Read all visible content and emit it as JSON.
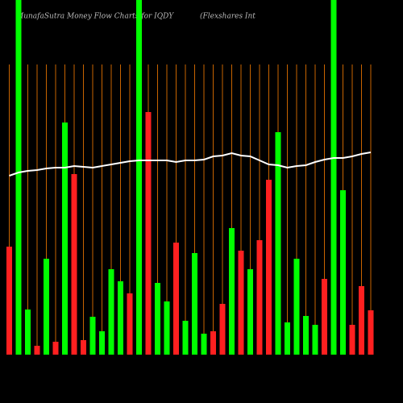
{
  "chart_data": {
    "type": "bar",
    "title": "MunafaSutra  Money Flow  Charts for IQDY",
    "subtitle": "(Flexshares Int",
    "series": [
      {
        "values": [
          134,
          440,
          56,
          11,
          119,
          16,
          288,
          224,
          18,
          47,
          29,
          106,
          91,
          76,
          440,
          301,
          89,
          66,
          139,
          42,
          126,
          26,
          29,
          63,
          157,
          129,
          106,
          142,
          217,
          276,
          40,
          119,
          48,
          37,
          94,
          440,
          204,
          37,
          85,
          55
        ],
        "colors": [
          "#ff2020",
          "#00ff00",
          "#00ff00",
          "#ff2020",
          "#00ff00",
          "#ff2020",
          "#00ff00",
          "#ff2020",
          "#ff2020",
          "#00ff00",
          "#00ff00",
          "#00ff00",
          "#00ff00",
          "#ff2020",
          "#00ff00",
          "#ff2020",
          "#00ff00",
          "#00ff00",
          "#ff2020",
          "#00ff00",
          "#00ff00",
          "#00ff00",
          "#ff2020",
          "#ff2020",
          "#00ff00",
          "#ff2020",
          "#00ff00",
          "#ff2020",
          "#ff2020",
          "#00ff00",
          "#00ff00",
          "#00ff00",
          "#00ff00",
          "#00ff00",
          "#ff2020",
          "#00ff00",
          "#00ff00",
          "#ff2020",
          "#ff2020",
          "#ff2020"
        ]
      },
      {
        "type": "line",
        "color": "#ffffff",
        "values": [
          222,
          226,
          228,
          229,
          231,
          232,
          232,
          234,
          233,
          232,
          234,
          236,
          238,
          240,
          241,
          241,
          241,
          241,
          239,
          241,
          241,
          242,
          246,
          247,
          250,
          247,
          246,
          241,
          236,
          235,
          232,
          234,
          235,
          239,
          242,
          244,
          244,
          246,
          249,
          251
        ]
      }
    ],
    "separator_color": "#c86400"
  }
}
